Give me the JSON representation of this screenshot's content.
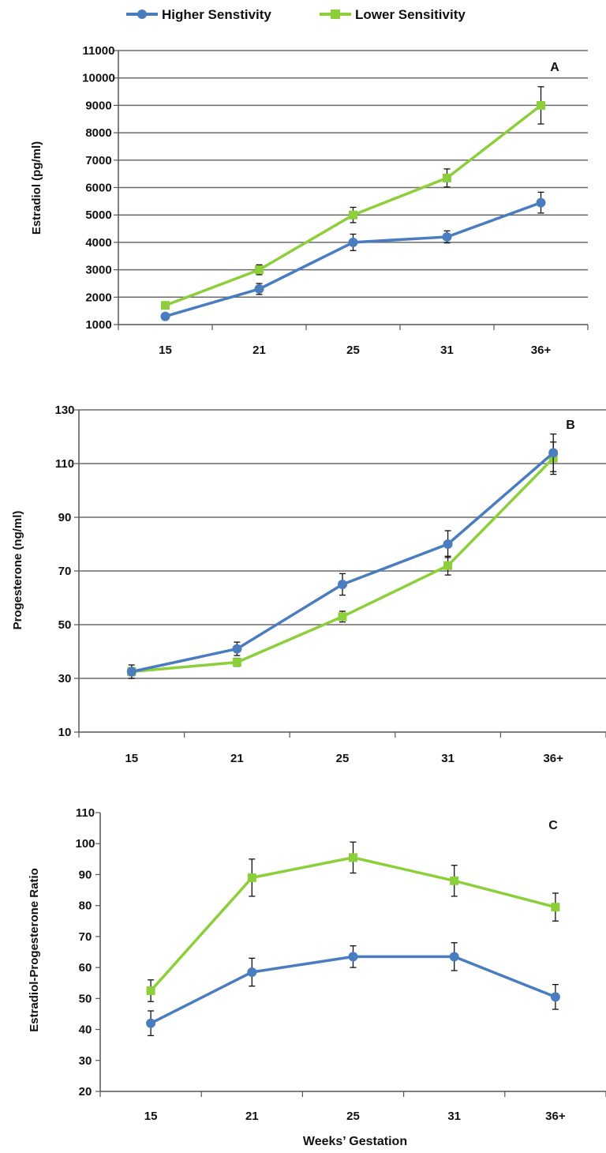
{
  "legend": {
    "items": [
      {
        "label": "Higher Senstivity",
        "color": "#4a7cc0",
        "marker": "circle"
      },
      {
        "label": "Lower Sensitivity",
        "color": "#8ccf3a",
        "marker": "square"
      }
    ]
  },
  "xlabel": "Weeks’ Gestation",
  "chart_data": [
    {
      "type": "line",
      "panel": "A",
      "ylabel": "Estradiol (pg/ml)",
      "categories": [
        "15",
        "21",
        "25",
        "31",
        "36+"
      ],
      "ylim": [
        1000,
        11000
      ],
      "yticks": [
        1000,
        2000,
        3000,
        4000,
        5000,
        6000,
        7000,
        8000,
        9000,
        10000,
        11000
      ],
      "grid": true,
      "series": [
        {
          "name": "Higher Senstivity",
          "values": [
            1300,
            2300,
            4000,
            4200,
            5450
          ],
          "errors": [
            100,
            200,
            300,
            220,
            380
          ]
        },
        {
          "name": "Lower Sensitivity",
          "values": [
            1700,
            3000,
            5000,
            6350,
            9000
          ],
          "errors": [
            100,
            180,
            280,
            330,
            680
          ]
        }
      ]
    },
    {
      "type": "line",
      "panel": "B",
      "ylabel": "Progesterone (ng/ml)",
      "categories": [
        "15",
        "21",
        "25",
        "31",
        "36+"
      ],
      "ylim": [
        10,
        130
      ],
      "yticks": [
        10,
        30,
        50,
        70,
        90,
        110,
        130
      ],
      "grid": true,
      "series": [
        {
          "name": "Higher Senstivity",
          "values": [
            32.5,
            41,
            65,
            80,
            114
          ],
          "errors": [
            2.5,
            2.5,
            4,
            5,
            7
          ]
        },
        {
          "name": "Lower Sensitivity",
          "values": [
            32.5,
            36,
            53,
            72,
            112
          ],
          "errors": [
            1.5,
            1.5,
            2,
            3.5,
            6
          ]
        }
      ]
    },
    {
      "type": "line",
      "panel": "C",
      "ylabel": "Estradiol-Progesterone Ratio",
      "categories": [
        "15",
        "21",
        "25",
        "31",
        "36+"
      ],
      "ylim": [
        20,
        110
      ],
      "yticks": [
        20,
        30,
        40,
        50,
        60,
        70,
        80,
        90,
        100,
        110
      ],
      "grid": false,
      "series": [
        {
          "name": "Higher Senstivity",
          "values": [
            42,
            58.5,
            63.5,
            63.5,
            50.5
          ],
          "errors": [
            4,
            4.5,
            3.5,
            4.5,
            4
          ]
        },
        {
          "name": "Lower Sensitivity",
          "values": [
            52.5,
            89,
            95.5,
            88,
            79.5
          ],
          "errors": [
            3.5,
            6,
            5,
            5,
            4.5
          ]
        }
      ]
    }
  ]
}
